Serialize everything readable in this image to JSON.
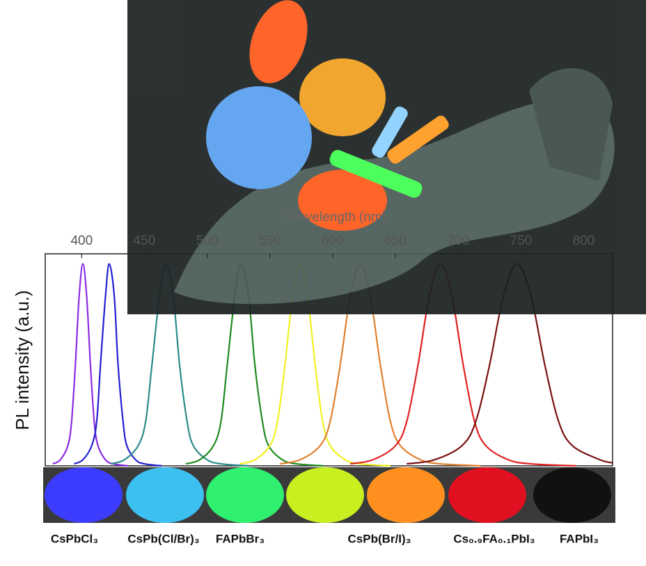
{
  "chart_data": {
    "type": "line",
    "xlabel": "Wavelength (nm)",
    "ylabel": "PL intensity (a.u.)",
    "xlim": [
      371,
      823
    ],
    "xticks": [
      400,
      450,
      500,
      550,
      600,
      650,
      700,
      750,
      800
    ],
    "ylim": [
      0,
      1.05
    ],
    "series": [
      {
        "color": "#8a2be2",
        "x": [
          377,
          383,
          389,
          392,
          395,
          398,
          401,
          404,
          407,
          410,
          413,
          419,
          425,
          437
        ],
        "values": [
          0.01,
          0.03,
          0.1,
          0.22,
          0.5,
          0.84,
          1,
          0.84,
          0.5,
          0.22,
          0.1,
          0.03,
          0.01,
          0
        ]
      },
      {
        "color": "#2020d0",
        "x": [
          394,
          401,
          408,
          412,
          415,
          419,
          422,
          426,
          429,
          433,
          436,
          443,
          450,
          464
        ],
        "values": [
          0.01,
          0.03,
          0.1,
          0.22,
          0.5,
          0.84,
          1,
          0.84,
          0.5,
          0.22,
          0.1,
          0.03,
          0.01,
          0
        ]
      },
      {
        "color": "#2a8a8a",
        "x": [
          423,
          434,
          445,
          451,
          456,
          462,
          467,
          473,
          478,
          484,
          489,
          500,
          511,
          533
        ],
        "values": [
          0.01,
          0.03,
          0.1,
          0.22,
          0.5,
          0.84,
          1,
          0.84,
          0.5,
          0.22,
          0.1,
          0.03,
          0.01,
          0
        ]
      },
      {
        "color": "#1e8a1e",
        "x": [
          483,
          494,
          505,
          511,
          516,
          522,
          527,
          533,
          538,
          544,
          549,
          560,
          571,
          593
        ],
        "values": [
          0.01,
          0.03,
          0.1,
          0.22,
          0.5,
          0.84,
          1,
          0.84,
          0.5,
          0.22,
          0.1,
          0.03,
          0.01,
          0
        ]
      },
      {
        "color": "#f0f020",
        "x": [
          526,
          538,
          550,
          556,
          562,
          568,
          574,
          580,
          586,
          592,
          598,
          610,
          622,
          646
        ],
        "values": [
          0.01,
          0.03,
          0.1,
          0.22,
          0.5,
          0.84,
          1,
          0.84,
          0.5,
          0.22,
          0.1,
          0.03,
          0.01,
          0
        ]
      },
      {
        "color": "#e08030",
        "x": [
          558,
          574,
          590,
          598,
          606,
          614,
          622,
          630,
          638,
          646,
          654,
          670,
          686,
          718
        ],
        "values": [
          0.01,
          0.03,
          0.1,
          0.22,
          0.5,
          0.84,
          1,
          0.84,
          0.5,
          0.22,
          0.1,
          0.03,
          0.01,
          0
        ]
      },
      {
        "color": "#e02020",
        "x": [
          614,
          632,
          650,
          659,
          668,
          677,
          686,
          695,
          704,
          713,
          722,
          740,
          758,
          794
        ],
        "values": [
          0.01,
          0.03,
          0.1,
          0.22,
          0.5,
          0.84,
          1,
          0.84,
          0.5,
          0.22,
          0.1,
          0.03,
          0.01,
          0
        ]
      },
      {
        "color": "#7a1010",
        "x": [
          659,
          681,
          703,
          714,
          725,
          736,
          747,
          758,
          769,
          780,
          791,
          813,
          823
        ],
        "values": [
          0.01,
          0.03,
          0.1,
          0.22,
          0.5,
          0.84,
          1,
          0.84,
          0.5,
          0.22,
          0.1,
          0.03,
          0.015
        ]
      }
    ],
    "sample_labels": [
      "CsPbCl₃",
      "CsPb(Cl/Br)₃",
      "FAPbBr₃",
      "CsPb(Br/I)₃",
      "Cs₀.₉FA₀.₁PbI₃",
      "FAPbI₃"
    ]
  }
}
